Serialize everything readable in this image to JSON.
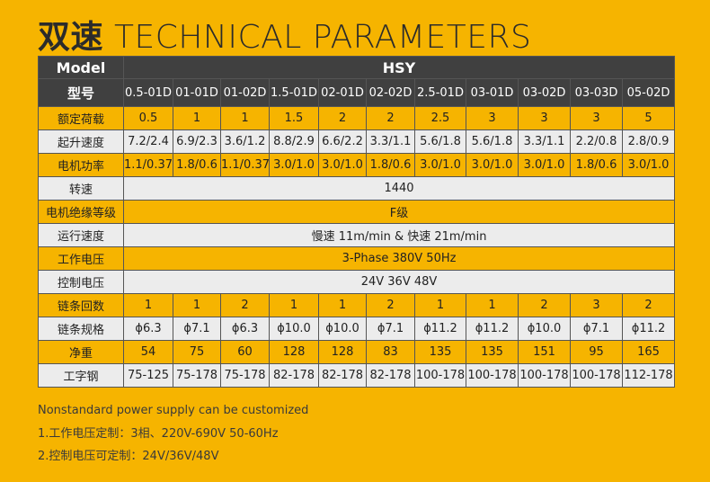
{
  "header": {
    "title_cn": "双速",
    "title_en": "TECHNICAL PARAMETERS"
  },
  "table": {
    "model_label": "Model",
    "series": "HSY",
    "code_label": "型号",
    "models": [
      "0.5-01D",
      "01-01D",
      "01-02D",
      "1.5-01D",
      "02-01D",
      "02-02D",
      "2.5-01D",
      "03-01D",
      "03-02D",
      "03-03D",
      "05-02D"
    ],
    "rows": [
      {
        "label": "额定荷载",
        "values": [
          "0.5",
          "1",
          "1",
          "1.5",
          "2",
          "2",
          "2.5",
          "3",
          "3",
          "3",
          "5"
        ]
      },
      {
        "label": "起升速度",
        "values": [
          "7.2/2.4",
          "6.9/2.3",
          "3.6/1.2",
          "8.8/2.9",
          "6.6/2.2",
          "3.3/1.1",
          "5.6/1.8",
          "5.6/1.8",
          "3.3/1.1",
          "2.2/0.8",
          "2.8/0.9"
        ]
      },
      {
        "label": "电机功率",
        "values": [
          "1.1/0.37",
          "1.8/0.6",
          "1.1/0.37",
          "3.0/1.0",
          "3.0/1.0",
          "1.8/0.6",
          "3.0/1.0",
          "3.0/1.0",
          "3.0/1.0",
          "1.8/0.6",
          "3.0/1.0"
        ]
      },
      {
        "label": "转速",
        "values": [
          "1440"
        ]
      },
      {
        "label": "电机绝缘等级",
        "values": [
          "F级"
        ]
      },
      {
        "label": "运行速度",
        "values": [
          "慢速 11m/min & 快速 21m/min"
        ]
      },
      {
        "label": "工作电压",
        "values": [
          "3-Phase 380V 50Hz"
        ]
      },
      {
        "label": "控制电压",
        "values": [
          "24V  36V  48V"
        ]
      },
      {
        "label": "链条回数",
        "values": [
          "1",
          "1",
          "2",
          "1",
          "1",
          "2",
          "1",
          "1",
          "2",
          "3",
          "2"
        ]
      },
      {
        "label": "链条规格",
        "values": [
          "ϕ6.3",
          "ϕ7.1",
          "ϕ6.3",
          "ϕ10.0",
          "ϕ10.0",
          "ϕ7.1",
          "ϕ11.2",
          "ϕ11.2",
          "ϕ10.0",
          "ϕ7.1",
          "ϕ11.2"
        ]
      },
      {
        "label": "净重",
        "values": [
          "54",
          "75",
          "60",
          "128",
          "128",
          "83",
          "135",
          "135",
          "151",
          "95",
          "165"
        ]
      },
      {
        "label": "工字钢",
        "values": [
          "75-125",
          "75-178",
          "75-178",
          "82-178",
          "82-178",
          "82-178",
          "100-178",
          "100-178",
          "100-178",
          "100-178",
          "112-178"
        ]
      }
    ]
  },
  "notes": [
    "Nonstandard power supply can be customized",
    "1.工作电压定制：3相、220V-690V  50-60Hz",
    "2.控制电压可定制：24V/36V/48V"
  ]
}
